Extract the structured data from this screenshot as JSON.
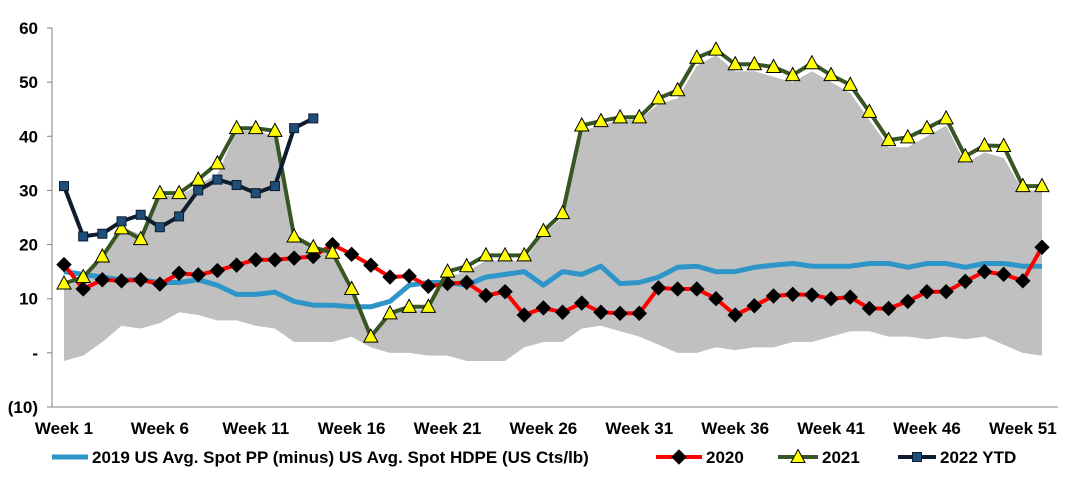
{
  "chart_data": {
    "type": "line",
    "title": "",
    "xlabel": "",
    "ylabel": "",
    "ylim": [
      -10,
      60
    ],
    "grid": false,
    "legend_position": "bottom",
    "y_ticks": [
      {
        "value": 60,
        "label": "60"
      },
      {
        "value": 50,
        "label": "50"
      },
      {
        "value": 40,
        "label": "40"
      },
      {
        "value": 30,
        "label": "30"
      },
      {
        "value": 20,
        "label": "20"
      },
      {
        "value": 10,
        "label": "10"
      },
      {
        "value": 0,
        "label": "-"
      },
      {
        "value": -10,
        "label": "(10)"
      }
    ],
    "x_ticks": [
      {
        "week": 1,
        "label": "Week 1"
      },
      {
        "week": 6,
        "label": "Week 6"
      },
      {
        "week": 11,
        "label": "Week 11"
      },
      {
        "week": 16,
        "label": "Week 16"
      },
      {
        "week": 21,
        "label": "Week 21"
      },
      {
        "week": 26,
        "label": "Week 26"
      },
      {
        "week": 31,
        "label": "Week 31"
      },
      {
        "week": 36,
        "label": "Week 36"
      },
      {
        "week": 41,
        "label": "Week 41"
      },
      {
        "week": 46,
        "label": "Week 46"
      },
      {
        "week": 51,
        "label": "Week 51"
      }
    ],
    "weeks": [
      1,
      2,
      3,
      4,
      5,
      6,
      7,
      8,
      9,
      10,
      11,
      12,
      13,
      14,
      15,
      16,
      17,
      18,
      19,
      20,
      21,
      22,
      23,
      24,
      25,
      26,
      27,
      28,
      29,
      30,
      31,
      32,
      33,
      34,
      35,
      36,
      37,
      38,
      39,
      40,
      41,
      42,
      43,
      44,
      45,
      46,
      47,
      48,
      49,
      50,
      51,
      52
    ],
    "band": {
      "lower": [
        -1.5,
        -0.5,
        2,
        5,
        4.5,
        5.5,
        7.5,
        7,
        6,
        6,
        5,
        4.5,
        2,
        2,
        2,
        3,
        1,
        0,
        0,
        -0.5,
        -0.5,
        -1.5,
        -1.5,
        -1.5,
        1,
        2,
        2,
        4.5,
        5,
        4,
        3,
        1.5,
        0,
        0,
        1,
        0.5,
        1,
        1,
        2,
        2,
        3,
        4,
        4,
        3,
        3,
        2.5,
        3,
        2.5,
        3,
        1.5,
        0,
        -0.5
      ],
      "upper": [
        12,
        14,
        17,
        23,
        22,
        29,
        29,
        31,
        33,
        41,
        41,
        40,
        22,
        20,
        18,
        11,
        2.5,
        7,
        8,
        8,
        14,
        15,
        17,
        17,
        17,
        22,
        25,
        41,
        42,
        43,
        43,
        46,
        47,
        53,
        55,
        52,
        52,
        51,
        50,
        52,
        50,
        48,
        43,
        38,
        38,
        40,
        42,
        35,
        37,
        36,
        30,
        30
      ],
      "color": "#c0c0c0"
    },
    "series": [
      {
        "name": "2019 US Avg. Spot PP (minus) US Avg. Spot HDPE (US Cts/lb)",
        "color": "#2e95c8",
        "marker": "none",
        "values": [
          15,
          14.5,
          14,
          13.5,
          13.5,
          13,
          13,
          13.5,
          12.5,
          10.8,
          10.8,
          11.2,
          9.5,
          8.8,
          8.8,
          8.5,
          8.5,
          9.5,
          12.5,
          13,
          13,
          12.5,
          14,
          14.5,
          15,
          12.5,
          15,
          14.5,
          16,
          12.8,
          13,
          14,
          15.8,
          16,
          15,
          15,
          15.8,
          16.2,
          16.5,
          16,
          16,
          16,
          16.5,
          16.5,
          15.8,
          16.5,
          16.5,
          15.8,
          16.5,
          16.5,
          16,
          16
        ]
      },
      {
        "name": "2020",
        "color": "#ff0000",
        "marker": "diamond",
        "values": [
          16.3,
          11.8,
          13.5,
          13.3,
          13.5,
          12.7,
          14.7,
          14.4,
          15.2,
          16.2,
          17.2,
          17.2,
          17.5,
          17.8,
          20,
          18.2,
          16.2,
          14,
          14.2,
          12.3,
          12.8,
          13,
          10.6,
          11.3,
          7,
          8.3,
          7.5,
          9.2,
          7.5,
          7.3,
          7.3,
          12,
          11.8,
          11.8,
          10,
          7,
          8.7,
          10.5,
          10.8,
          10.7,
          10,
          10.3,
          8.2,
          8.2,
          9.5,
          11.3,
          11.3,
          13.2,
          15,
          14.5,
          13.3,
          19.5
        ]
      },
      {
        "name": "2021",
        "color": "#375623",
        "marker": "triangle",
        "values": [
          12.8,
          14,
          17.8,
          23,
          21,
          29.5,
          29.5,
          32,
          35,
          41.5,
          41.5,
          41,
          21.5,
          19.5,
          18.5,
          11.8,
          3,
          7.3,
          8.5,
          8.5,
          15,
          16,
          18,
          18,
          18,
          22.5,
          25.8,
          42,
          42.8,
          43.5,
          43.5,
          47,
          48.5,
          54.5,
          56,
          53.3,
          53.3,
          52.8,
          51.3,
          53.5,
          51.3,
          49.5,
          44.5,
          39.3,
          39.8,
          41.5,
          43.3,
          36.3,
          38.3,
          38.2,
          30.8,
          30.8
        ]
      },
      {
        "name": "2022 YTD",
        "color": "#0d1c2e",
        "marker": "square",
        "values": [
          30.8,
          21.5,
          22,
          24.3,
          25.5,
          23.2,
          25.2,
          30,
          32,
          31,
          29.5,
          30.8,
          41.5,
          43.3
        ]
      }
    ],
    "legend": [
      {
        "label": "2019 US Avg. Spot PP (minus) US Avg. Spot HDPE (US Cts/lb)",
        "series": 0
      },
      {
        "label": "2020",
        "series": 1
      },
      {
        "label": "2021",
        "series": 2
      },
      {
        "label": "2022 YTD",
        "series": 3
      }
    ]
  }
}
